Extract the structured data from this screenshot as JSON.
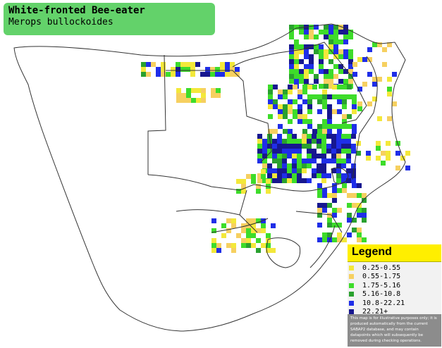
{
  "title": {
    "common_name": "White-fronted Bee-eater",
    "scientific_name": "Merops bullockoides"
  },
  "legend": {
    "heading": "Legend",
    "items": [
      {
        "label": "0.25-0.55",
        "color": "#f3e83a"
      },
      {
        "label": "0.55-1.75",
        "color": "#f6d060"
      },
      {
        "label": "1.75-5.16",
        "color": "#3ddc2a"
      },
      {
        "label": "5.16-10.8",
        "color": "#2aa12f"
      },
      {
        "label": "10.8-22.21",
        "color": "#1f2ee8"
      },
      {
        "label": "22.21+",
        "color": "#17178f"
      }
    ],
    "disclaimer": "This map is for illustrative purposes only; it is produced automatically from the current SABAP2 database, and may contain datapoints which will subsequently be removed during checking operations."
  },
  "colors": {
    "title_background": "#63d26a",
    "legend_header": "#ffef00",
    "border_lines": "#333333"
  }
}
